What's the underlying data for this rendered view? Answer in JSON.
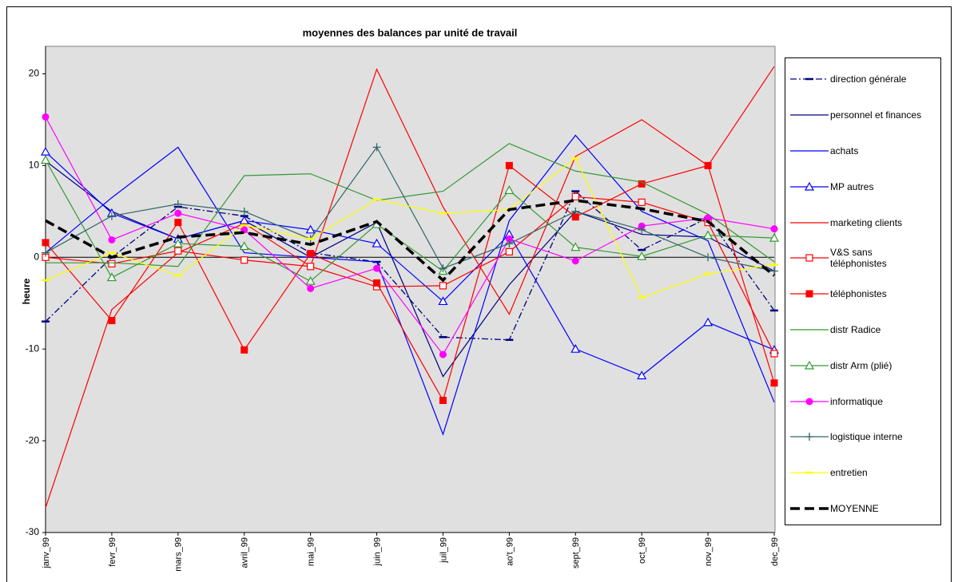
{
  "chart_data": {
    "type": "line",
    "title": "moyennes des balances par unité de travail",
    "y_label": "heure",
    "categories": [
      "janv_99",
      "fevr_99",
      "mars_99",
      "avril_99",
      "mai_99",
      "juin_99",
      "juil_99",
      "ao't_99",
      "sept_99",
      "oct_99",
      "nov_99",
      "dec_99"
    ],
    "ylim": [
      -30,
      23
    ],
    "yticks": [
      -30,
      -20,
      -10,
      0,
      10,
      20
    ],
    "background": "#e0e0e0",
    "series": [
      {
        "name": "direction générale",
        "color": "#000080",
        "line_style": "dashdot",
        "marker": "dash",
        "values": [
          -7,
          0,
          5.5,
          4.5,
          0.5,
          -0.5,
          -8.7,
          -9,
          7.2,
          0.8,
          4.3,
          -5.8
        ]
      },
      {
        "name": "personnel et finances",
        "color": "#000080",
        "line_style": "solid",
        "marker": null,
        "values": [
          10.5,
          5,
          2,
          4,
          0,
          3.8,
          -13,
          -3,
          5,
          2.5,
          2.2,
          -1.5
        ]
      },
      {
        "name": "achats",
        "color": "#0000ff",
        "line_style": "solid",
        "marker": null,
        "values": [
          0.5,
          6.5,
          12,
          0.5,
          0,
          -0.5,
          -19.3,
          4,
          13.3,
          5,
          1.8,
          -15.8
        ]
      },
      {
        "name": "MP autres",
        "color": "#0000ff",
        "line_style": "solid",
        "marker": "triangle-open",
        "values": [
          11.5,
          4.8,
          2,
          4,
          3,
          1.5,
          -4.8,
          2.5,
          -10,
          -12.9,
          -7.1,
          -10.1
        ]
      },
      {
        "name": "marketing clients",
        "color": "#ff0000",
        "line_style": "solid",
        "marker": null,
        "values": [
          -27.3,
          -5.7,
          0.5,
          3.7,
          -1,
          20.5,
          5.5,
          -6.2,
          11,
          15,
          10,
          20.8
        ]
      },
      {
        "name": "V&S sans téléphonistes",
        "color": "#ff0000",
        "line_style": "solid",
        "marker": "square-open",
        "values": [
          0,
          -0.7,
          0.7,
          -0.3,
          -1,
          -3.2,
          -3.1,
          0.6,
          6.6,
          6,
          3.8,
          -10.5
        ]
      },
      {
        "name": "téléphonistes",
        "color": "#ff0000",
        "line_style": "solid",
        "marker": "square",
        "values": [
          1.6,
          -6.9,
          3.8,
          -10.1,
          0.4,
          -2.8,
          -15.6,
          10,
          4.4,
          8,
          10,
          -13.7
        ]
      },
      {
        "name": "distr Radice",
        "color": "#339933",
        "line_style": "solid",
        "marker": null,
        "values": [
          -0.6,
          -0.6,
          -1,
          8.9,
          9.1,
          6.2,
          7.2,
          12.4,
          9.4,
          8.2,
          4.7,
          -0.5
        ]
      },
      {
        "name": "distr Arm (plié)",
        "color": "#339933",
        "line_style": "solid",
        "marker": "triangle-open",
        "values": [
          10.6,
          -2.2,
          1.5,
          1.2,
          -2.6,
          3.6,
          -1.5,
          7.3,
          1.1,
          0.1,
          2.4,
          2.1
        ]
      },
      {
        "name": "informatique",
        "color": "#ff00ff",
        "line_style": "solid",
        "marker": "circle",
        "values": [
          15.3,
          1.9,
          4.8,
          3,
          -3.4,
          -1.2,
          -10.6,
          2,
          -0.4,
          3.4,
          4.3,
          3.1
        ]
      },
      {
        "name": "logistique interne",
        "color": "#336666",
        "line_style": "solid",
        "marker": "plus",
        "values": [
          0.5,
          4.5,
          5.8,
          5,
          2,
          12,
          -1.2,
          1.5,
          5,
          3,
          0,
          -1.5
        ]
      },
      {
        "name": "entretien",
        "color": "#ffff00",
        "line_style": "solid",
        "marker": "dash",
        "values": [
          -2.5,
          0.5,
          -2,
          3.5,
          2,
          6.3,
          4.8,
          5.2,
          10.8,
          -4.4,
          -1.8,
          -0.8
        ]
      },
      {
        "name": "MOYENNE",
        "color": "#000000",
        "line_style": "dash-thick",
        "marker": null,
        "values": [
          4,
          0,
          2.2,
          2.7,
          1.4,
          3.9,
          -2.5,
          5.2,
          6.2,
          5.3,
          3.9,
          -2
        ]
      }
    ]
  }
}
